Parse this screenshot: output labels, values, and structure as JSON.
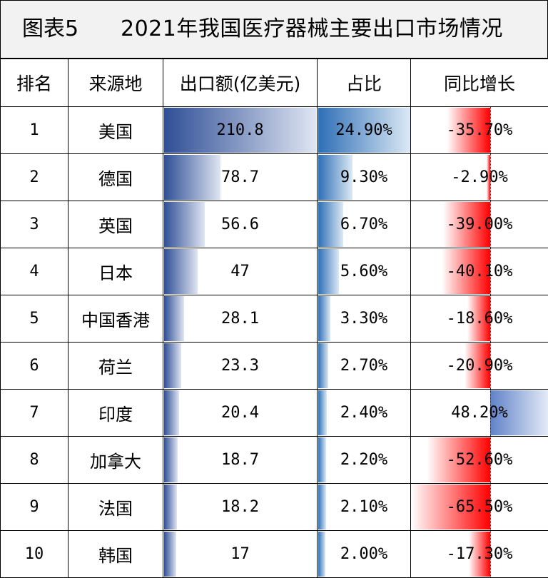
{
  "title": {
    "number": "图表5",
    "text": "2021年我国医疗器械主要出口市场情况"
  },
  "headers": [
    "排名",
    "来源地",
    "出口额(亿美元)",
    "占比",
    "同比增长"
  ],
  "rows": [
    {
      "rank": "1",
      "market": "美国",
      "export": "210.8",
      "share": "24.90%",
      "growth": "-35.70%"
    },
    {
      "rank": "2",
      "market": "德国",
      "export": "78.7",
      "share": "9.30%",
      "growth": "-2.90%"
    },
    {
      "rank": "3",
      "market": "英国",
      "export": "56.6",
      "share": "6.70%",
      "growth": "-39.00%"
    },
    {
      "rank": "4",
      "market": "日本",
      "export": "47",
      "share": "5.60%",
      "growth": "-40.10%"
    },
    {
      "rank": "5",
      "market": "中国香港",
      "export": "28.1",
      "share": "3.30%",
      "growth": "-18.60%"
    },
    {
      "rank": "6",
      "market": "荷兰",
      "export": "23.3",
      "share": "2.70%",
      "growth": "-20.90%"
    },
    {
      "rank": "7",
      "market": "印度",
      "export": "20.4",
      "share": "2.40%",
      "growth": "48.20%"
    },
    {
      "rank": "8",
      "market": "加拿大",
      "export": "18.7",
      "share": "2.20%",
      "growth": "-52.60%"
    },
    {
      "rank": "9",
      "market": "法国",
      "export": "18.2",
      "share": "2.10%",
      "growth": "-65.50%"
    },
    {
      "rank": "10",
      "market": "韩国",
      "export": "17",
      "share": "2.00%",
      "growth": "-17.30%"
    }
  ],
  "data_bars": {
    "export_max": 210.8,
    "share_max": 24.9,
    "growth_min": -65.5,
    "growth_max": 48.2
  },
  "colors": {
    "export_bar": "#2f4f96",
    "share_bar": "#2e6fb6",
    "negative_growth": "#ff0000",
    "positive_growth": "#5f82c8",
    "title_background": "#f2f2f2"
  }
}
